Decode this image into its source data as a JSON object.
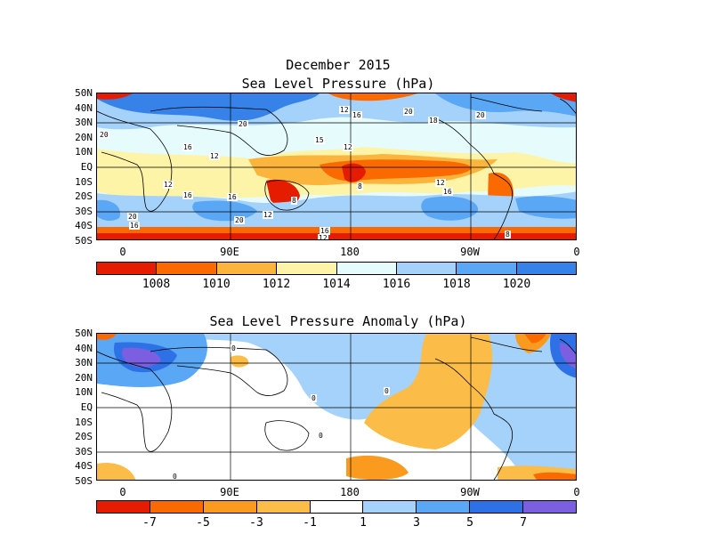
{
  "panel1": {
    "title_line1": "December 2015",
    "title_line2": "Sea Level Pressure (hPa)",
    "lat_labels": [
      "50N",
      "40N",
      "30N",
      "20N",
      "10N",
      "EQ",
      "10S",
      "20S",
      "30S",
      "40S",
      "50S"
    ],
    "lon_labels": [
      "0",
      "90E",
      "180",
      "90W",
      "0"
    ],
    "colorbar_colors": [
      "#e51c00",
      "#fa6a00",
      "#fbb43c",
      "#fdf4a8",
      "#e6fcfc",
      "#a5d2fb",
      "#5aa7f5",
      "#3682e8"
    ],
    "colorbar_labels": [
      "1008",
      "1010",
      "1012",
      "1014",
      "1016",
      "1018",
      "1020"
    ],
    "contour_labels": [
      "20",
      "12",
      "16",
      "20",
      "18",
      "20",
      "20",
      "16",
      "15",
      "12",
      "12",
      "12",
      "8",
      "12",
      "16",
      "16",
      "16",
      "8",
      "20",
      "16",
      "20",
      "12",
      "16",
      "12",
      "8"
    ]
  },
  "panel2": {
    "title": "Sea Level Pressure Anomaly (hPa)",
    "lat_labels": [
      "50N",
      "40N",
      "30N",
      "20N",
      "10N",
      "EQ",
      "10S",
      "20S",
      "30S",
      "40S",
      "50S"
    ],
    "lon_labels": [
      "0",
      "90E",
      "180",
      "90W",
      "0"
    ],
    "colorbar_colors": [
      "#e51c00",
      "#fa6a00",
      "#fa9a1e",
      "#fbbd47",
      "#ffffff",
      "#a5d2fb",
      "#5aa7f5",
      "#2e71e6",
      "#7b5fe0"
    ],
    "colorbar_labels": [
      "-7",
      "-5",
      "-3",
      "-1",
      "1",
      "3",
      "5",
      "7"
    ],
    "contour_labels": [
      "0",
      "0",
      "0",
      "0",
      "0"
    ]
  }
}
